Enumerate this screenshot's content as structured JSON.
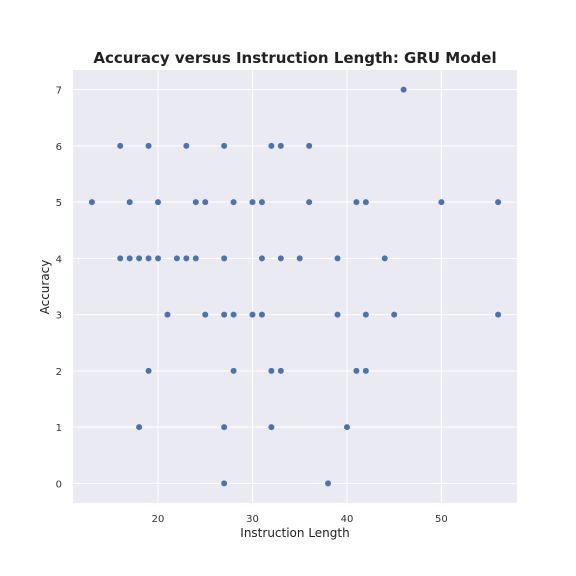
{
  "chart_data": {
    "type": "scatter",
    "title": "Accuracy versus Instruction Length: GRU Model",
    "xlabel": "Instruction Length",
    "ylabel": "Accuracy",
    "xlim": [
      11,
      58
    ],
    "ylim": [
      -0.35,
      7.35
    ],
    "xticks": [
      20,
      30,
      40,
      50
    ],
    "yticks": [
      0,
      1,
      2,
      3,
      4,
      5,
      6,
      7
    ],
    "grid": true,
    "legend": "none",
    "colors": {
      "background": "#eaeaf2",
      "marker": "#4c72b0",
      "grid": "#ffffff"
    },
    "points": [
      {
        "x": 13,
        "y": 5
      },
      {
        "x": 16,
        "y": 6
      },
      {
        "x": 16,
        "y": 4
      },
      {
        "x": 17,
        "y": 5
      },
      {
        "x": 17,
        "y": 4
      },
      {
        "x": 18,
        "y": 4
      },
      {
        "x": 18,
        "y": 1
      },
      {
        "x": 19,
        "y": 6
      },
      {
        "x": 19,
        "y": 4
      },
      {
        "x": 19,
        "y": 2
      },
      {
        "x": 20,
        "y": 5
      },
      {
        "x": 20,
        "y": 4
      },
      {
        "x": 21,
        "y": 3
      },
      {
        "x": 22,
        "y": 4
      },
      {
        "x": 23,
        "y": 6
      },
      {
        "x": 23,
        "y": 4
      },
      {
        "x": 24,
        "y": 5
      },
      {
        "x": 24,
        "y": 4
      },
      {
        "x": 25,
        "y": 5
      },
      {
        "x": 25,
        "y": 3
      },
      {
        "x": 27,
        "y": 6
      },
      {
        "x": 27,
        "y": 4
      },
      {
        "x": 27,
        "y": 3
      },
      {
        "x": 27,
        "y": 1
      },
      {
        "x": 27,
        "y": 0
      },
      {
        "x": 28,
        "y": 5
      },
      {
        "x": 28,
        "y": 3
      },
      {
        "x": 28,
        "y": 2
      },
      {
        "x": 30,
        "y": 5
      },
      {
        "x": 30,
        "y": 3
      },
      {
        "x": 31,
        "y": 5
      },
      {
        "x": 31,
        "y": 4
      },
      {
        "x": 31,
        "y": 3
      },
      {
        "x": 32,
        "y": 6
      },
      {
        "x": 32,
        "y": 2
      },
      {
        "x": 32,
        "y": 1
      },
      {
        "x": 33,
        "y": 6
      },
      {
        "x": 33,
        "y": 4
      },
      {
        "x": 33,
        "y": 2
      },
      {
        "x": 35,
        "y": 4
      },
      {
        "x": 36,
        "y": 6
      },
      {
        "x": 36,
        "y": 5
      },
      {
        "x": 38,
        "y": 0
      },
      {
        "x": 39,
        "y": 4
      },
      {
        "x": 39,
        "y": 3
      },
      {
        "x": 40,
        "y": 1
      },
      {
        "x": 41,
        "y": 5
      },
      {
        "x": 41,
        "y": 2
      },
      {
        "x": 42,
        "y": 5
      },
      {
        "x": 42,
        "y": 3
      },
      {
        "x": 42,
        "y": 2
      },
      {
        "x": 44,
        "y": 4
      },
      {
        "x": 45,
        "y": 3
      },
      {
        "x": 46,
        "y": 7
      },
      {
        "x": 50,
        "y": 5
      },
      {
        "x": 56,
        "y": 5
      },
      {
        "x": 56,
        "y": 3
      }
    ]
  }
}
